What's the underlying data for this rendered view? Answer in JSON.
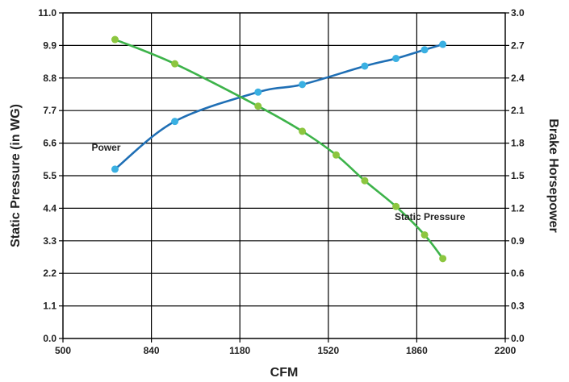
{
  "chart_data": {
    "type": "line",
    "title": "",
    "xlabel": "CFM",
    "ylabel": "Static Pressure (in WG)",
    "y2label": "Brake Horsepower",
    "xlim": [
      500,
      2200
    ],
    "ylim": [
      0,
      11.0
    ],
    "y2lim": [
      0,
      3.0
    ],
    "grid": true,
    "legend": "none",
    "x_ticks": [
      "500",
      "840",
      "1180",
      "1520",
      "1860",
      "2200"
    ],
    "y_ticks": [
      "0.0",
      "1.1",
      "2.2",
      "3.3",
      "4.4",
      "5.5",
      "6.6",
      "7.7",
      "8.8",
      "9.9",
      "11.0"
    ],
    "y2_ticks": [
      "0.0",
      "0.3",
      "0.6",
      "0.9",
      "1.2",
      "1.5",
      "1.8",
      "2.1",
      "2.4",
      "2.7",
      "3.0"
    ],
    "series": [
      {
        "name": "Power",
        "axis": "right",
        "line_color": "#1f6fb5",
        "marker_color": "#3ab0e2",
        "x": [
          700,
          930,
          1250,
          1420,
          1660,
          1780,
          1890,
          1960
        ],
        "y": [
          1.56,
          2.0,
          2.27,
          2.34,
          2.51,
          2.58,
          2.66,
          2.71
        ]
      },
      {
        "name": "Static Pressure",
        "axis": "left",
        "line_color": "#3db34a",
        "marker_color": "#8cc63f",
        "x": [
          700,
          930,
          1250,
          1420,
          1550,
          1660,
          1780,
          1890,
          1960
        ],
        "y": [
          10.1,
          9.28,
          7.85,
          7.0,
          6.2,
          5.33,
          4.46,
          3.5,
          2.7
        ]
      }
    ],
    "annotations": [
      {
        "text": "Power",
        "x": 610,
        "y": 6.35
      },
      {
        "text": "Static Pressure",
        "x": 1775,
        "y": 4.0
      }
    ]
  }
}
